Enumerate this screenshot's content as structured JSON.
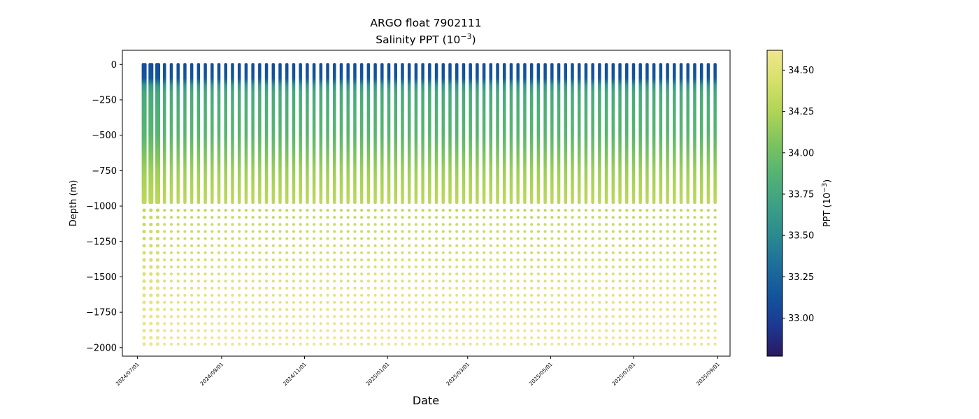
{
  "chart_data": {
    "type": "scatter",
    "title": "ARGO float 7902111",
    "subtitle_main": "Salinity PPT (10",
    "subtitle_exp": "−3",
    "subtitle_end": ")",
    "xlabel": "Date",
    "ylabel": "Depth (m)",
    "x_start_date": "2024-07-01",
    "xlim": [
      "2024-06-20",
      "2025-09-10"
    ],
    "xticks": [
      "2024/07/01",
      "2024/09/01",
      "2024/11/01",
      "2025/01/01",
      "2025/03/01",
      "2025/05/01",
      "2025/07/01",
      "2025/09/01"
    ],
    "ylim": [
      -2060,
      100
    ],
    "yticks": [
      0,
      -250,
      -500,
      -750,
      -1000,
      -1250,
      -1500,
      -1750,
      -2000
    ],
    "ytick_labels": [
      "0",
      "−250",
      "−500",
      "−750",
      "−1000",
      "−1250",
      "−1500",
      "−1750",
      "−2000"
    ],
    "profiles": {
      "first_date": "2024-07-06",
      "last_date": "2025-09-02",
      "interval_days": 5,
      "dense_top_depth": 0,
      "dense_bottom_depth": -975,
      "sparse_depths": [
        -1030,
        -1080,
        -1130,
        -1180,
        -1230,
        -1280,
        -1330,
        -1380,
        -1430,
        -1480,
        -1530,
        -1580,
        -1630,
        -1680,
        -1730,
        -1780,
        -1830,
        -1880,
        -1930,
        -1975
      ]
    },
    "salinity_profile": {
      "depth": [
        0,
        -100,
        -130,
        -160,
        -250,
        -500,
        -750,
        -1000,
        -1250,
        -1500,
        -1750,
        -2000
      ],
      "ppt": [
        33.08,
        33.15,
        33.45,
        33.72,
        33.8,
        33.9,
        34.18,
        34.33,
        34.4,
        34.5,
        34.58,
        34.62
      ]
    },
    "colorbar": {
      "label_main": "PPT (10",
      "label_exp": "−3",
      "label_end": ")",
      "range": [
        32.77,
        34.62
      ],
      "ticks": [
        33.0,
        33.25,
        33.5,
        33.75,
        34.0,
        34.25,
        34.5
      ],
      "tick_labels": [
        "33.00",
        "33.25",
        "33.50",
        "33.75",
        "34.00",
        "34.25",
        "34.50"
      ],
      "colormap": [
        "#2a1860",
        "#1d3892",
        "#13559c",
        "#1d6f9b",
        "#2c8b8f",
        "#3ea184",
        "#55b472",
        "#7fc45e",
        "#b0d456",
        "#d6e06b",
        "#f0e68f"
      ]
    }
  }
}
